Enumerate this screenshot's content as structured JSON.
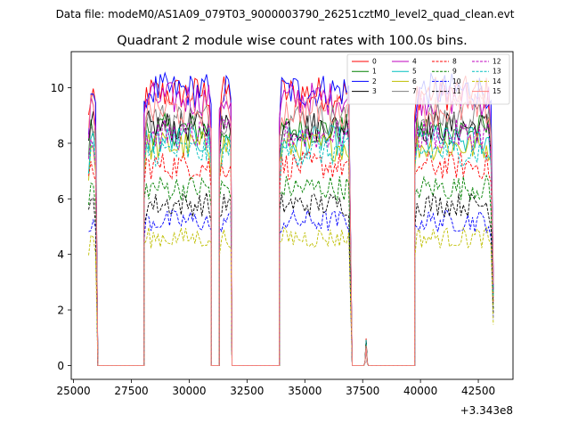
{
  "figure": {
    "suptitle": "Data file: modeM0/AS1A09_079T03_9000003790_26251cztM0_level2_quad_clean.evt",
    "offset_text": "+3.343e8"
  },
  "chart_data": {
    "type": "line",
    "title": "Quadrant 2 module wise count rates with 100.0s bins.",
    "xlabel": "",
    "ylabel": "",
    "xlim": [
      24900,
      44000
    ],
    "ylim": [
      -0.5,
      11.3
    ],
    "x_offset": 334300000,
    "x_ticks": [
      25000,
      27500,
      30000,
      32500,
      35000,
      37500,
      40000,
      42500
    ],
    "x_tick_labels": [
      "25000",
      "27500",
      "30000",
      "32500",
      "35000",
      "37500",
      "40000",
      "42500"
    ],
    "y_ticks": [
      0,
      2,
      4,
      6,
      8,
      10
    ],
    "y_tick_labels": [
      "0",
      "2",
      "4",
      "6",
      "8",
      "10"
    ],
    "grid": false,
    "legend_position": "top-right",
    "legend_columns": 4,
    "segments": [
      {
        "start": 25650,
        "end": 25950,
        "kind": "on"
      },
      {
        "start": 26050,
        "end": 28050,
        "kind": "off"
      },
      {
        "start": 28050,
        "end": 30950,
        "kind": "on"
      },
      {
        "start": 30950,
        "end": 31300,
        "kind": "off"
      },
      {
        "start": 31300,
        "end": 31850,
        "kind": "on"
      },
      {
        "start": 31850,
        "end": 33900,
        "kind": "off"
      },
      {
        "start": 33900,
        "end": 36950,
        "kind": "on"
      },
      {
        "start": 37050,
        "end": 37550,
        "kind": "off"
      },
      {
        "start": 37650,
        "end": 37650,
        "kind": "spike"
      },
      {
        "start": 37750,
        "end": 39750,
        "kind": "off"
      },
      {
        "start": 39750,
        "end": 43050,
        "kind": "on"
      },
      {
        "start": 43150,
        "end": 43150,
        "kind": "end"
      }
    ],
    "series": [
      {
        "name": "0",
        "level": 9.8,
        "color": "#ff0000",
        "dash": "solid"
      },
      {
        "name": "1",
        "level": 8.5,
        "color": "#008000",
        "dash": "solid"
      },
      {
        "name": "2",
        "level": 9.9,
        "color": "#0000ff",
        "dash": "solid"
      },
      {
        "name": "3",
        "level": 8.6,
        "color": "#000000",
        "dash": "solid"
      },
      {
        "name": "4",
        "level": 9.6,
        "color": "#bf00bf",
        "dash": "solid"
      },
      {
        "name": "5",
        "level": 8.1,
        "color": "#00bfbf",
        "dash": "solid"
      },
      {
        "name": "6",
        "level": 7.9,
        "color": "#bfbf00",
        "dash": "solid"
      },
      {
        "name": "7",
        "level": 8.9,
        "color": "#808080",
        "dash": "solid"
      },
      {
        "name": "8",
        "level": 7.2,
        "color": "#ff0000",
        "dash": "dashed"
      },
      {
        "name": "9",
        "level": 6.4,
        "color": "#008000",
        "dash": "dashed"
      },
      {
        "name": "10",
        "level": 5.2,
        "color": "#0000ff",
        "dash": "dashed"
      },
      {
        "name": "11",
        "level": 5.8,
        "color": "#000000",
        "dash": "dashed"
      },
      {
        "name": "12",
        "level": 8.3,
        "color": "#bf00bf",
        "dash": "dashed"
      },
      {
        "name": "13",
        "level": 7.7,
        "color": "#00bfbf",
        "dash": "dashed"
      },
      {
        "name": "14",
        "level": 4.6,
        "color": "#bfbf00",
        "dash": "dashed"
      },
      {
        "name": "15",
        "level": 9.2,
        "color": "#ff8080",
        "dash": "solid"
      }
    ]
  }
}
